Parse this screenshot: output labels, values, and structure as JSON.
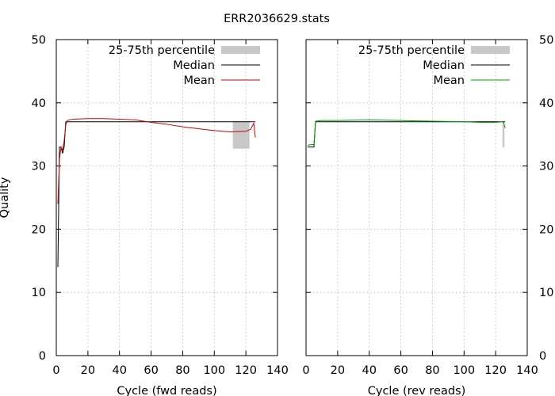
{
  "title": "ERR2036629.stats",
  "colors": {
    "band": "#c8c8c8",
    "median": "#000000",
    "mean_fwd": "#cc0000",
    "mean_rev": "#00a000",
    "grid": "#b4b4b4"
  },
  "chart_data": [
    {
      "type": "line",
      "xlabel": "Cycle (fwd reads)",
      "ylabel": "Quality",
      "xlim": [
        0,
        140
      ],
      "ylim": [
        0,
        50
      ],
      "xticks": [
        "0",
        "20",
        "40",
        "60",
        "80",
        "100",
        "120",
        "140"
      ],
      "yticks": [
        "0",
        "10",
        "20",
        "30",
        "40",
        "50"
      ],
      "grid": true,
      "legend_position": "top-right",
      "legend": [
        "25-75th percentile",
        "Median",
        "Mean"
      ],
      "percentile_band": {
        "x": [
          112,
          112,
          122,
          122
        ],
        "lower": [
          32.8,
          32.8,
          32.8,
          32.8
        ],
        "upper": [
          37,
          37,
          37,
          37
        ]
      },
      "median": {
        "x": [
          1,
          2,
          3,
          4,
          5,
          6,
          120,
          125,
          126
        ],
        "y": [
          14,
          33,
          33,
          32,
          33,
          37,
          37,
          37,
          37
        ]
      },
      "mean": {
        "x": [
          1,
          2,
          3,
          4,
          5,
          6,
          7,
          10,
          20,
          30,
          40,
          50,
          60,
          70,
          80,
          90,
          100,
          110,
          120,
          123,
          125,
          126
        ],
        "y": [
          24,
          31,
          33,
          32.5,
          34,
          36.5,
          37.2,
          37.4,
          37.5,
          37.5,
          37.4,
          37.3,
          36.9,
          36.6,
          36.2,
          35.9,
          35.6,
          35.4,
          35.5,
          35.8,
          36.8,
          34.5
        ]
      }
    },
    {
      "type": "line",
      "xlabel": "Cycle (rev reads)",
      "ylabel": "",
      "xlim": [
        0,
        140
      ],
      "ylim": [
        0,
        50
      ],
      "xticks": [
        "0",
        "20",
        "40",
        "60",
        "80",
        "100",
        "120",
        "140"
      ],
      "yticks": [
        "0",
        "10",
        "20",
        "30",
        "40",
        "50"
      ],
      "grid": true,
      "legend_position": "top-right",
      "legend": [
        "25-75th percentile",
        "Median",
        "Mean"
      ],
      "percentile_band": {
        "x": [
          124.6,
          125.3
        ],
        "lower": [
          33,
          33
        ],
        "upper": [
          37,
          37
        ]
      },
      "median": {
        "x": [
          1,
          4,
          5,
          6,
          125,
          126
        ],
        "y": [
          33,
          33,
          33,
          37,
          37,
          37
        ]
      },
      "mean": {
        "x": [
          1,
          4,
          5,
          6,
          10,
          20,
          40,
          60,
          80,
          100,
          110,
          120,
          125,
          126
        ],
        "y": [
          33.3,
          33.4,
          33.4,
          37.1,
          37.2,
          37.2,
          37.3,
          37.2,
          37.1,
          37.0,
          36.9,
          36.9,
          37.0,
          36.0
        ]
      }
    }
  ]
}
